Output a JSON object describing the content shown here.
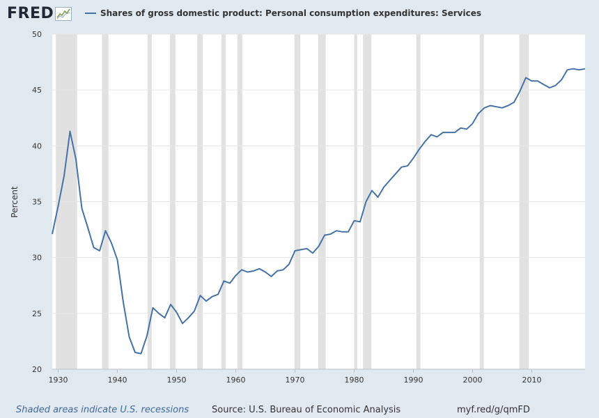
{
  "header": {
    "logo_text": "FRED",
    "logo_icon": "trend-chart-icon",
    "series_label": "Shares of gross domestic product: Personal consumption expenditures: Services"
  },
  "footer": {
    "recession_note": "Shaded areas indicate U.S. recessions",
    "source": "Source: U.S. Bureau of Economic Analysis",
    "url": "myf.red/g/qmFD"
  },
  "colors": {
    "background": "#e1e9f0",
    "plot_background": "#ffffff",
    "series": "#4572a7",
    "recession": "#e1e1e1",
    "grid": "#e6e6e6"
  },
  "chart_data": {
    "type": "line",
    "title": "",
    "xlabel": "",
    "ylabel": "Percent",
    "xlim": [
      1929,
      2019
    ],
    "ylim": [
      20,
      50
    ],
    "x_ticks": [
      1930,
      1940,
      1950,
      1960,
      1970,
      1980,
      1990,
      2000,
      2010
    ],
    "y_ticks": [
      20,
      25,
      30,
      35,
      40,
      45,
      50
    ],
    "grid": "horizontal",
    "legend": "top-left",
    "recessions": [
      [
        1929.6,
        1933.2
      ],
      [
        1937.4,
        1938.5
      ],
      [
        1945.1,
        1945.8
      ],
      [
        1948.9,
        1949.8
      ],
      [
        1953.5,
        1954.4
      ],
      [
        1957.6,
        1958.3
      ],
      [
        1960.3,
        1961.1
      ],
      [
        1969.9,
        1970.9
      ],
      [
        1973.9,
        1975.2
      ],
      [
        1980.0,
        1980.5
      ],
      [
        1981.5,
        1982.9
      ],
      [
        1990.5,
        1991.2
      ],
      [
        2001.2,
        2001.9
      ],
      [
        2007.9,
        2009.5
      ]
    ],
    "series": [
      {
        "name": "Shares of gross domestic product: Personal consumption expenditures: Services",
        "x": [
          1929,
          1930,
          1931,
          1932,
          1933,
          1934,
          1935,
          1936,
          1937,
          1938,
          1939,
          1940,
          1941,
          1942,
          1943,
          1944,
          1945,
          1946,
          1947,
          1948,
          1949,
          1950,
          1951,
          1952,
          1953,
          1954,
          1955,
          1956,
          1957,
          1958,
          1959,
          1960,
          1961,
          1962,
          1963,
          1964,
          1965,
          1966,
          1967,
          1968,
          1969,
          1970,
          1971,
          1972,
          1973,
          1974,
          1975,
          1976,
          1977,
          1978,
          1979,
          1980,
          1981,
          1982,
          1983,
          1984,
          1985,
          1986,
          1987,
          1988,
          1989,
          1990,
          1991,
          1992,
          1993,
          1994,
          1995,
          1996,
          1997,
          1998,
          1999,
          2000,
          2001,
          2002,
          2003,
          2004,
          2005,
          2006,
          2007,
          2008,
          2009,
          2010,
          2011,
          2012,
          2013,
          2014,
          2015,
          2016,
          2017,
          2018,
          2019
        ],
        "values": [
          32.1,
          34.6,
          37.3,
          41.3,
          38.8,
          34.4,
          32.7,
          30.9,
          30.6,
          32.4,
          31.3,
          29.8,
          26.0,
          22.9,
          21.5,
          21.4,
          23.0,
          25.5,
          25.0,
          24.6,
          25.8,
          25.1,
          24.1,
          24.6,
          25.2,
          26.6,
          26.1,
          26.5,
          26.7,
          27.9,
          27.7,
          28.4,
          28.9,
          28.7,
          28.8,
          29.0,
          28.7,
          28.3,
          28.8,
          28.9,
          29.4,
          30.6,
          30.7,
          30.8,
          30.4,
          31.0,
          32.0,
          32.1,
          32.4,
          32.3,
          32.3,
          33.3,
          33.2,
          35.0,
          36.0,
          35.4,
          36.3,
          36.9,
          37.5,
          38.1,
          38.2,
          38.9,
          39.7,
          40.4,
          41.0,
          40.8,
          41.2,
          41.2,
          41.2,
          41.6,
          41.5,
          42.0,
          42.9,
          43.4,
          43.6,
          43.5,
          43.4,
          43.6,
          43.9,
          44.9,
          46.1,
          45.8,
          45.8,
          45.5,
          45.2,
          45.4,
          45.9,
          46.8,
          46.9,
          46.8,
          46.9
        ]
      }
    ]
  }
}
